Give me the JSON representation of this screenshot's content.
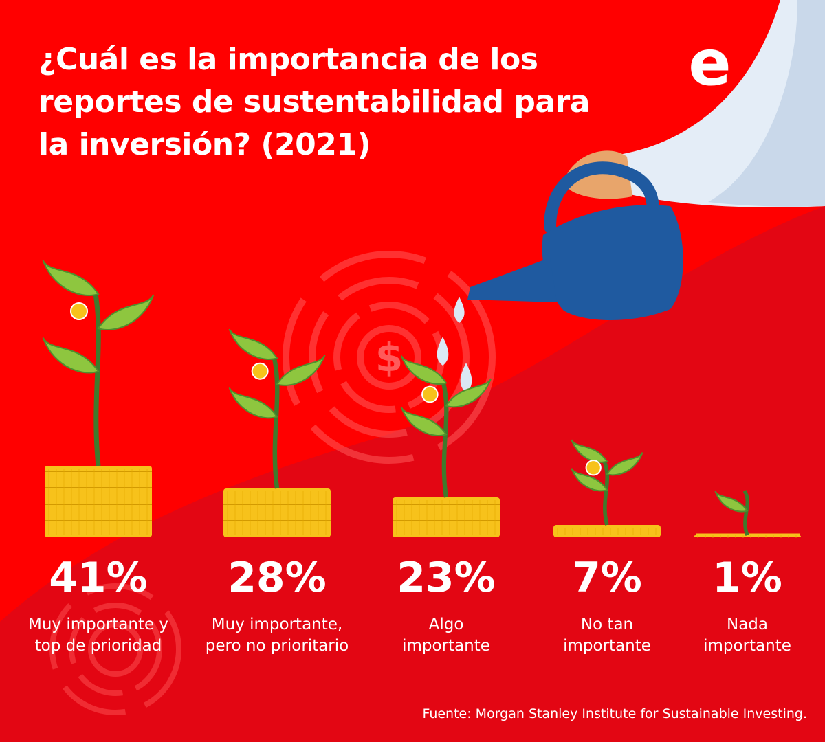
{
  "title": "¿Cuál es la importancia de los reportes de sustentabilidad para la inversión? (2021)",
  "brand": "e",
  "source": "Fuente: Morgan Stanley Institute for Sustainable Investing.",
  "colors": {
    "background": "#ff0000",
    "background_lower": "#e30613",
    "text": "#ffffff",
    "coin": "#f7c21b",
    "leaf": "#8ec63f",
    "stem": "#3f7a2c",
    "watering_can": "#1f5aa0",
    "sleeve": "#e4edf7"
  },
  "icons": [
    "plant-icon",
    "coin-stack-icon",
    "dollar-target-icon",
    "watering-can-icon",
    "water-drop-icon",
    "hand-icon"
  ],
  "chart_data": {
    "type": "bar",
    "title": "¿Cuál es la importancia de los reportes de sustentabilidad para la inversión? (2021)",
    "categories": [
      "Muy importante y\ntop de prioridad",
      "Muy importante,\npero no prioritario",
      "Algo\nimportante",
      "No tan\nimportante",
      "Nada\nimportante"
    ],
    "values": [
      41,
      28,
      23,
      7,
      1
    ],
    "value_labels": [
      "41%",
      "28%",
      "23%",
      "7%",
      "1%"
    ],
    "unit": "%",
    "ylim": [
      0,
      41
    ],
    "grid": false,
    "legend": "none"
  }
}
